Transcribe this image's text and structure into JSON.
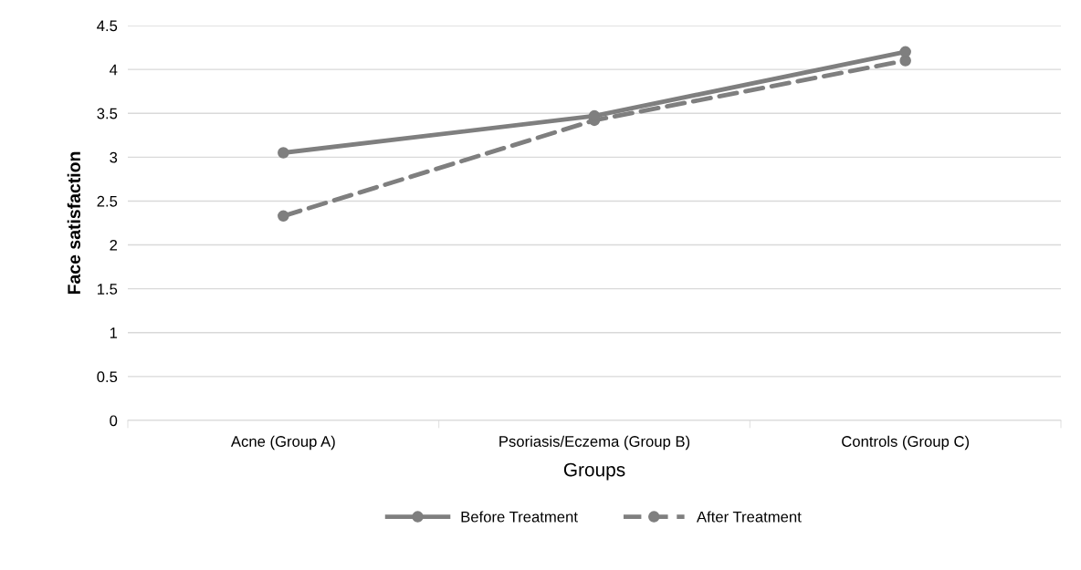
{
  "chart_data": {
    "type": "line",
    "xlabel": "Groups",
    "ylabel": "Face satisfaction",
    "categories": [
      "Acne (Group A)",
      "Psoriasis/Eczema (Group B)",
      "Controls (Group C)"
    ],
    "series": [
      {
        "name": "Before Treatment",
        "color": "#7f7f7f",
        "values": [
          3.05,
          3.47,
          4.2
        ],
        "line_style": "solid"
      },
      {
        "name": "After Treatment",
        "color": "#7f7f7f",
        "values": [
          2.33,
          3.42,
          4.1
        ],
        "line_style": "dashed"
      }
    ],
    "ylim": [
      0,
      4.5
    ],
    "yticks": [
      0,
      0.5,
      1,
      1.5,
      2,
      2.5,
      3,
      3.5,
      4,
      4.5
    ],
    "grid": "y",
    "legend": "bottom",
    "marker": "circle"
  }
}
